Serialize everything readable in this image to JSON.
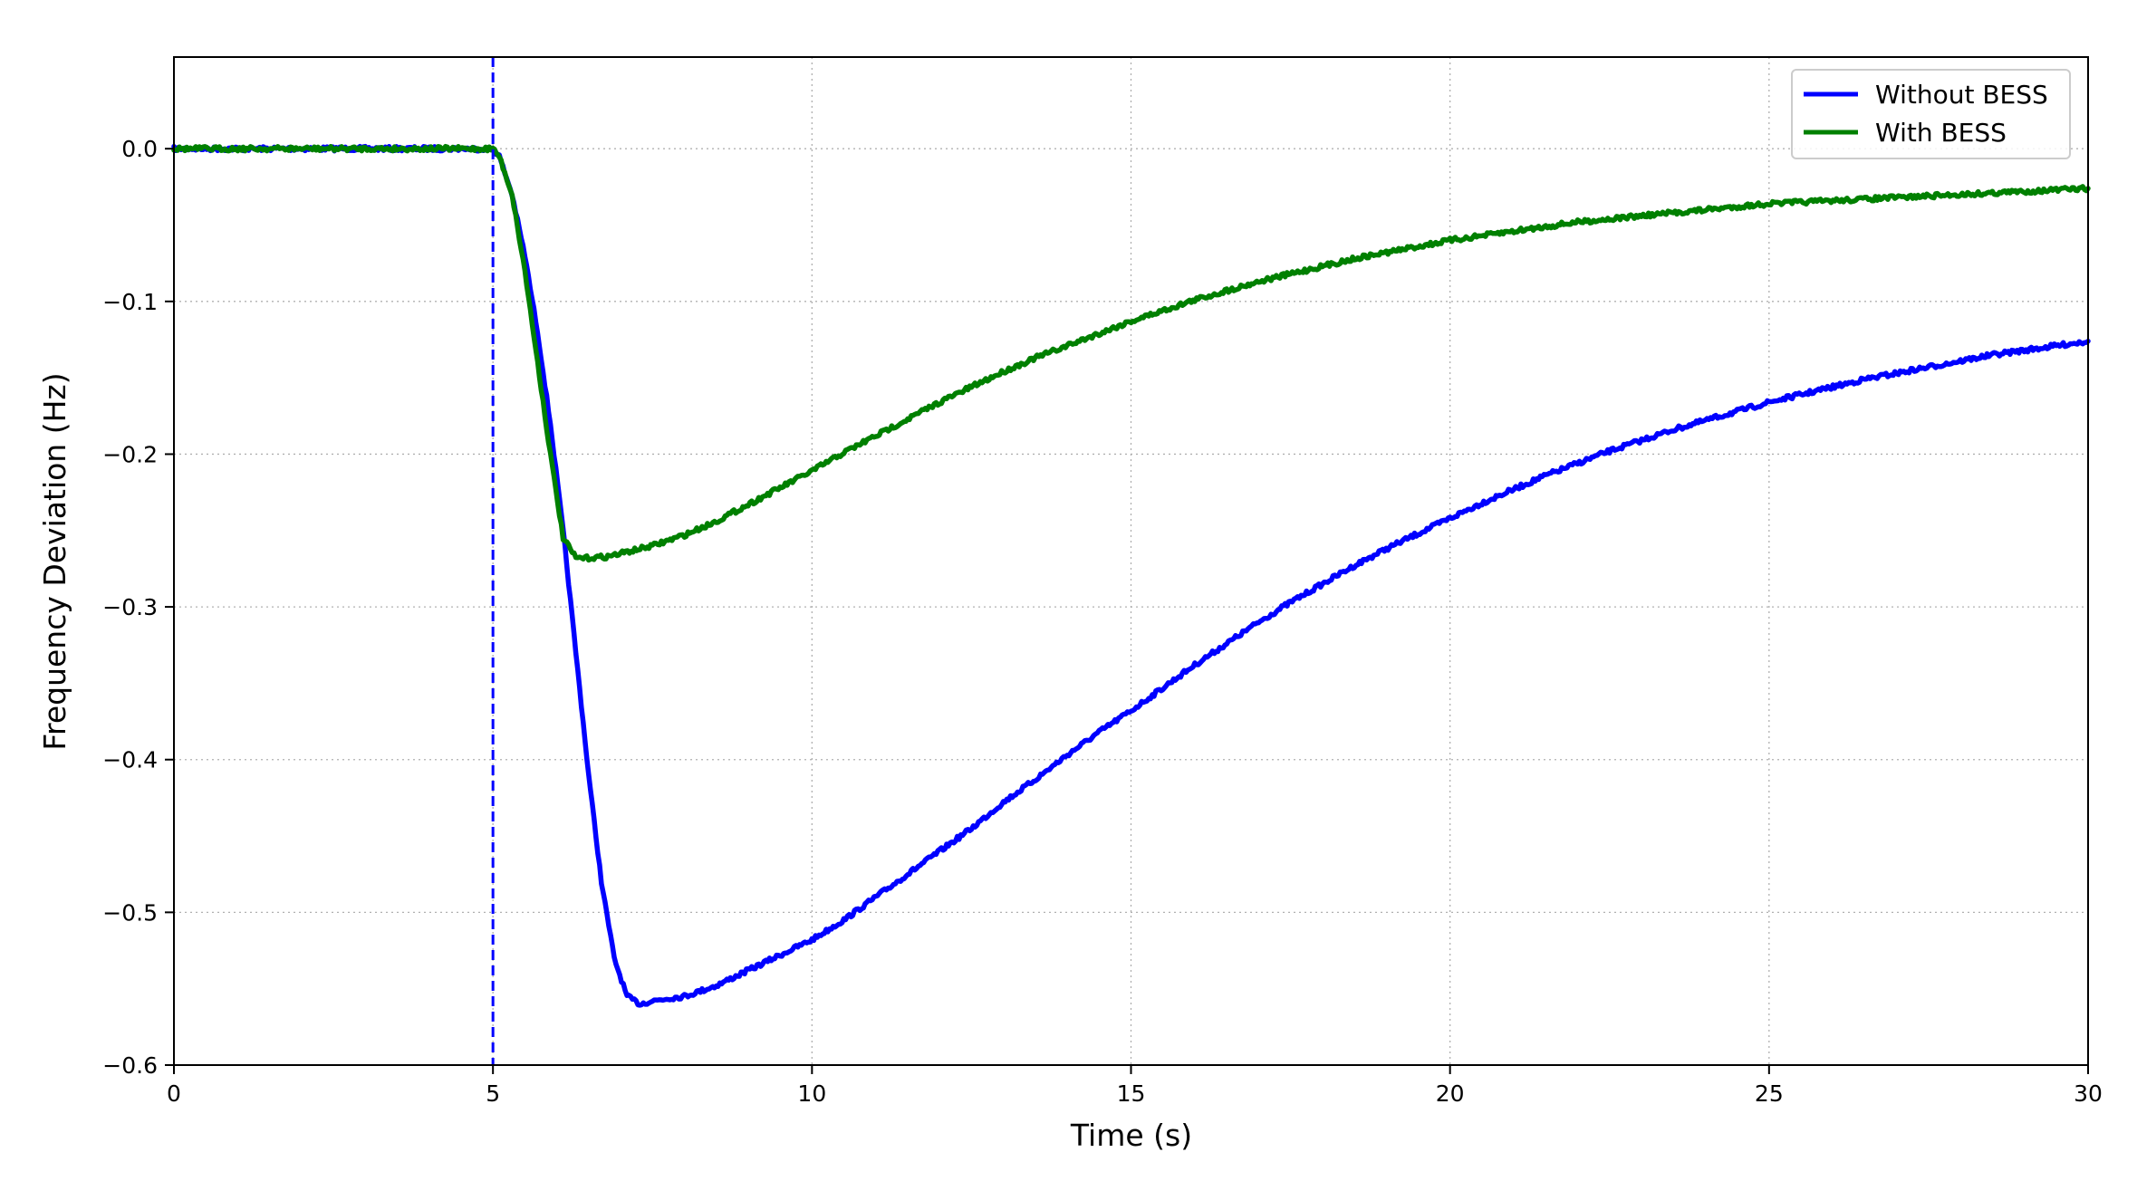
{
  "chart_data": {
    "type": "line",
    "title": "",
    "xlabel": "Time (s)",
    "ylabel": "Frequency Deviation (Hz)",
    "xlim": [
      0,
      30
    ],
    "ylim": [
      -0.6,
      0.06
    ],
    "xticks": [
      0,
      5,
      10,
      15,
      20,
      25,
      30
    ],
    "xtick_labels": [
      "0",
      "5",
      "10",
      "15",
      "20",
      "25",
      "30"
    ],
    "yticks": [
      0.0,
      -0.1,
      -0.2,
      -0.3,
      -0.4,
      -0.5,
      -0.6
    ],
    "ytick_labels": [
      "0.0",
      "−0.1",
      "−0.2",
      "−0.3",
      "−0.4",
      "−0.5",
      "−0.6"
    ],
    "grid": true,
    "legend_position": "top-right",
    "event_marker": {
      "x": 5,
      "style": "dashed",
      "color": "#0000ff"
    },
    "series": [
      {
        "name": "Without BESS",
        "color": "#0000ff",
        "x": [
          0,
          1,
          2,
          3,
          4,
          5,
          5.1,
          5.3,
          5.5,
          5.7,
          5.9,
          6.1,
          6.3,
          6.5,
          6.7,
          6.9,
          7.1,
          7.3,
          7.5,
          7.8,
          8,
          8.5,
          9,
          9.5,
          10,
          10.5,
          11,
          11.5,
          12,
          12.5,
          13,
          13.5,
          14,
          14.5,
          15,
          15.5,
          16,
          16.5,
          17,
          17.5,
          18,
          18.5,
          19,
          19.5,
          20,
          20.5,
          21,
          21.5,
          22,
          22.5,
          23,
          23.5,
          24,
          24.5,
          25,
          25.5,
          26,
          26.5,
          27,
          27.5,
          28,
          28.5,
          29,
          29.5,
          30
        ],
        "y": [
          0,
          0,
          0,
          0,
          0,
          0,
          -0.005,
          -0.03,
          -0.07,
          -0.12,
          -0.18,
          -0.25,
          -0.33,
          -0.41,
          -0.48,
          -0.53,
          -0.555,
          -0.56,
          -0.558,
          -0.556,
          -0.555,
          -0.548,
          -0.538,
          -0.528,
          -0.518,
          -0.505,
          -0.49,
          -0.475,
          -0.46,
          -0.445,
          -0.428,
          -0.413,
          -0.397,
          -0.382,
          -0.368,
          -0.353,
          -0.338,
          -0.324,
          -0.31,
          -0.297,
          -0.285,
          -0.273,
          -0.262,
          -0.252,
          -0.242,
          -0.232,
          -0.223,
          -0.214,
          -0.206,
          -0.198,
          -0.191,
          -0.184,
          -0.178,
          -0.172,
          -0.166,
          -0.161,
          -0.156,
          -0.151,
          -0.147,
          -0.143,
          -0.139,
          -0.135,
          -0.132,
          -0.129,
          -0.126
        ]
      },
      {
        "name": "With BESS",
        "color": "#008000",
        "x": [
          0,
          1,
          2,
          3,
          4,
          5,
          5.1,
          5.3,
          5.5,
          5.7,
          5.9,
          6.1,
          6.3,
          6.5,
          6.8,
          7,
          7.5,
          8,
          8.5,
          9,
          9.5,
          10,
          10.5,
          11,
          11.5,
          12,
          12.5,
          13,
          13.5,
          14,
          14.5,
          15,
          15.5,
          16,
          16.5,
          17,
          17.5,
          18,
          18.5,
          19,
          19.5,
          20,
          20.5,
          21,
          21.5,
          22,
          22.5,
          23,
          23.5,
          24,
          24.5,
          25,
          25.5,
          26,
          26.5,
          27,
          27.5,
          28,
          28.5,
          29,
          29.5,
          30
        ],
        "y": [
          0,
          0,
          0,
          0,
          0,
          0,
          -0.005,
          -0.03,
          -0.08,
          -0.14,
          -0.2,
          -0.255,
          -0.268,
          -0.268,
          -0.267,
          -0.265,
          -0.26,
          -0.253,
          -0.244,
          -0.233,
          -0.222,
          -0.211,
          -0.199,
          -0.188,
          -0.177,
          -0.166,
          -0.156,
          -0.146,
          -0.137,
          -0.129,
          -0.121,
          -0.113,
          -0.106,
          -0.099,
          -0.093,
          -0.087,
          -0.082,
          -0.077,
          -0.072,
          -0.068,
          -0.064,
          -0.06,
          -0.057,
          -0.054,
          -0.051,
          -0.048,
          -0.046,
          -0.044,
          -0.042,
          -0.04,
          -0.038,
          -0.036,
          -0.035,
          -0.034,
          -0.033,
          -0.032,
          -0.031,
          -0.03,
          -0.029,
          -0.028,
          -0.027,
          -0.026
        ]
      }
    ]
  }
}
